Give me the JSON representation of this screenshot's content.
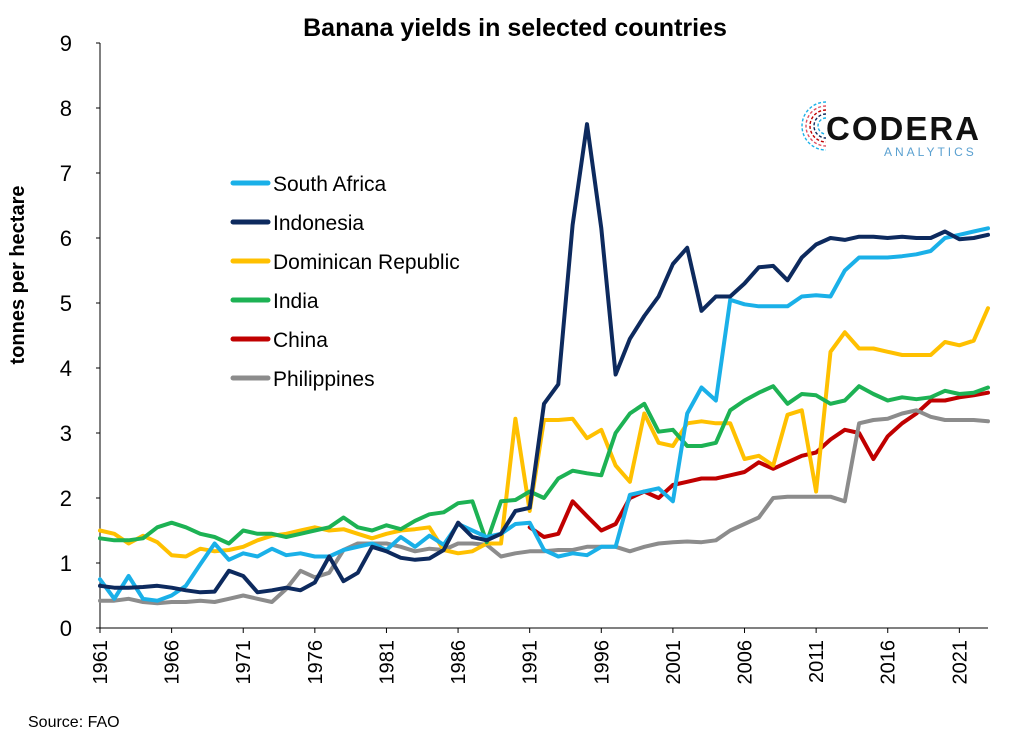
{
  "chart_data": {
    "type": "line",
    "title": "Banana yields in selected countries",
    "ylabel": "tonnes per hectare",
    "xlabel": "",
    "ylim": [
      0,
      9
    ],
    "xlim": [
      1961,
      2023
    ],
    "yticks": [
      0,
      1,
      2,
      3,
      4,
      5,
      6,
      7,
      8,
      9
    ],
    "xticks": [
      "1961",
      "1966",
      "1971",
      "1976",
      "1981",
      "1986",
      "1991",
      "1996",
      "2001",
      "2006",
      "2011",
      "2016",
      "2021"
    ],
    "grid": false,
    "legend": "upper-left",
    "series": [
      {
        "name": "South Africa",
        "color": "#1ab0e8",
        "start": 1961,
        "values": [
          0.75,
          0.45,
          0.8,
          0.45,
          0.42,
          0.5,
          0.65,
          0.98,
          1.3,
          1.05,
          1.15,
          1.1,
          1.22,
          1.12,
          1.15,
          1.1,
          1.1,
          1.2,
          1.25,
          1.3,
          1.2,
          1.4,
          1.25,
          1.42,
          1.28,
          1.6,
          1.5,
          1.4,
          1.45,
          1.6,
          1.62,
          1.2,
          1.1,
          1.15,
          1.12,
          1.25,
          1.25,
          2.05,
          2.1,
          2.15,
          1.95,
          3.3,
          3.7,
          3.5,
          5.05,
          4.98,
          4.95,
          4.95,
          4.95,
          5.1,
          5.12,
          5.1,
          5.5,
          5.7,
          5.7,
          5.7,
          5.72,
          5.75,
          5.8,
          6.0,
          6.05,
          6.1,
          6.15
        ]
      },
      {
        "name": "Indonesia",
        "color": "#0d2a5e",
        "start": 1961,
        "values": [
          0.65,
          0.62,
          0.62,
          0.63,
          0.65,
          0.62,
          0.58,
          0.55,
          0.56,
          0.88,
          0.8,
          0.55,
          0.58,
          0.62,
          0.58,
          0.7,
          1.1,
          0.72,
          0.85,
          1.25,
          1.18,
          1.08,
          1.05,
          1.07,
          1.2,
          1.62,
          1.4,
          1.35,
          1.45,
          1.8,
          1.85,
          3.45,
          3.75,
          6.2,
          7.75,
          6.15,
          3.9,
          4.45,
          4.8,
          5.1,
          5.6,
          5.85,
          4.88,
          5.1,
          5.1,
          5.3,
          5.55,
          5.57,
          5.35,
          5.7,
          5.9,
          6.0,
          5.97,
          6.02,
          6.02,
          6.0,
          6.02,
          6.0,
          6.0,
          6.1,
          5.98,
          6.0,
          6.05
        ]
      },
      {
        "name": "Dominican Republic",
        "color": "#ffc000",
        "start": 1961,
        "values": [
          1.5,
          1.45,
          1.3,
          1.42,
          1.32,
          1.12,
          1.1,
          1.22,
          1.18,
          1.2,
          1.25,
          1.35,
          1.42,
          1.45,
          1.5,
          1.55,
          1.5,
          1.52,
          1.45,
          1.38,
          1.45,
          1.5,
          1.52,
          1.55,
          1.2,
          1.15,
          1.18,
          1.3,
          1.3,
          3.22,
          1.8,
          3.2,
          3.2,
          3.22,
          2.92,
          3.05,
          2.5,
          2.25,
          3.3,
          2.85,
          2.8,
          3.15,
          3.18,
          3.15,
          3.15,
          2.6,
          2.65,
          2.5,
          3.28,
          3.35,
          2.1,
          4.25,
          4.55,
          4.3,
          4.3,
          4.25,
          4.2,
          4.2,
          4.2,
          4.4,
          4.35,
          4.42,
          4.92
        ]
      },
      {
        "name": "India",
        "color": "#1db254",
        "start": 1961,
        "values": [
          1.38,
          1.35,
          1.35,
          1.38,
          1.55,
          1.62,
          1.55,
          1.45,
          1.4,
          1.3,
          1.5,
          1.45,
          1.45,
          1.4,
          1.45,
          1.5,
          1.55,
          1.7,
          1.55,
          1.5,
          1.58,
          1.52,
          1.65,
          1.75,
          1.78,
          1.92,
          1.95,
          1.32,
          1.95,
          1.97,
          2.1,
          2.0,
          2.3,
          2.42,
          2.38,
          2.35,
          3.0,
          3.3,
          3.45,
          3.02,
          3.05,
          2.8,
          2.8,
          2.85,
          3.35,
          3.5,
          3.62,
          3.72,
          3.45,
          3.6,
          3.58,
          3.45,
          3.5,
          3.72,
          3.6,
          3.5,
          3.55,
          3.52,
          3.55,
          3.65,
          3.6,
          3.62,
          3.7
        ]
      },
      {
        "name": "China",
        "color": "#c00000",
        "start": 1991,
        "values": [
          1.55,
          1.4,
          1.45,
          1.95,
          1.72,
          1.5,
          1.6,
          2.0,
          2.1,
          2.0,
          2.2,
          2.25,
          2.3,
          2.3,
          2.35,
          2.4,
          2.55,
          2.45,
          2.55,
          2.65,
          2.7,
          2.9,
          3.05,
          3.0,
          2.6,
          2.95,
          3.15,
          3.3,
          3.5,
          3.5,
          3.55,
          3.58,
          3.62
        ]
      },
      {
        "name": "Philippines",
        "color": "#8c8c8c",
        "start": 1961,
        "values": [
          0.42,
          0.42,
          0.45,
          0.4,
          0.38,
          0.4,
          0.4,
          0.42,
          0.4,
          0.45,
          0.5,
          0.45,
          0.4,
          0.6,
          0.88,
          0.78,
          0.85,
          1.2,
          1.3,
          1.3,
          1.3,
          1.25,
          1.18,
          1.22,
          1.2,
          1.3,
          1.3,
          1.28,
          1.1,
          1.15,
          1.18,
          1.18,
          1.2,
          1.2,
          1.25,
          1.25,
          1.25,
          1.18,
          1.25,
          1.3,
          1.32,
          1.33,
          1.32,
          1.35,
          1.5,
          1.6,
          1.7,
          2.0,
          2.02,
          2.02,
          2.02,
          2.02,
          1.95,
          3.15,
          3.2,
          3.22,
          3.3,
          3.35,
          3.25,
          3.2,
          3.2,
          3.2,
          3.18
        ]
      }
    ]
  },
  "source": "Source: FAO",
  "logo": {
    "main": "CODERA",
    "sub": "ANALYTICS",
    "colors": [
      "#c00000",
      "#e05060",
      "#1ab0e8",
      "#0d2a5e"
    ]
  }
}
